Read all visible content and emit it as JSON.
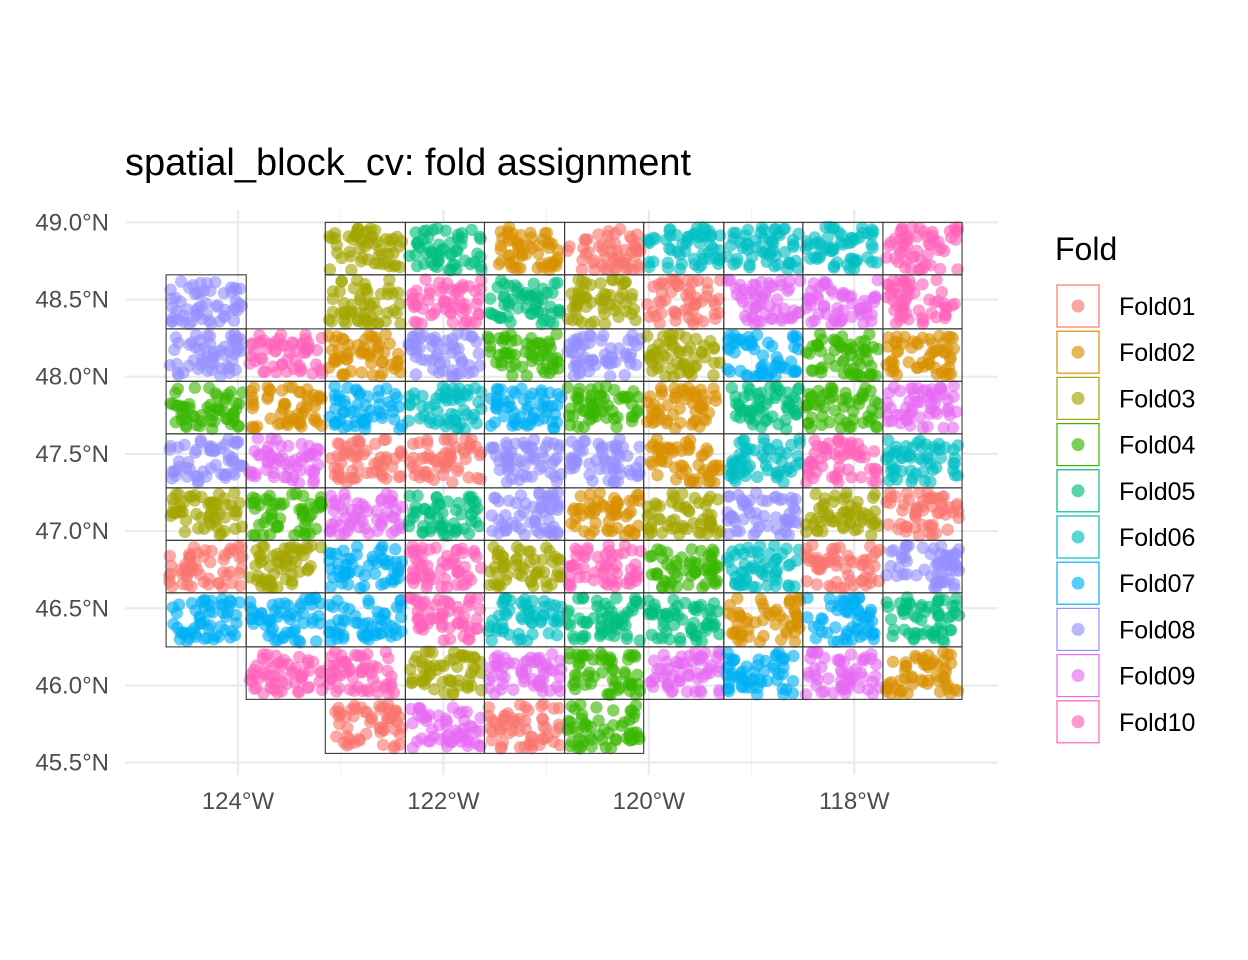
{
  "chart_data": {
    "type": "scatter",
    "title": "spatial_block_cv: fold assignment",
    "xlabel": "",
    "ylabel": "",
    "grid": true,
    "legend_position": "right",
    "x_axis": {
      "ticks": [
        -124,
        -122,
        -120,
        -118
      ],
      "tick_labels": [
        "124°W",
        "122°W",
        "120°W",
        "118°W"
      ],
      "range": [
        -125.1,
        -116.6
      ]
    },
    "y_axis": {
      "ticks": [
        45.5,
        46.0,
        46.5,
        47.0,
        47.5,
        48.0,
        48.5,
        49.0
      ],
      "tick_labels": [
        "45.5°N",
        "46.0°N",
        "46.5°N",
        "47.0°N",
        "47.5°N",
        "48.0°N",
        "48.5°N",
        "49.0°N"
      ],
      "range": [
        45.42,
        49.08
      ]
    },
    "legend": {
      "title": "Fold",
      "entries": [
        {
          "label": "Fold01",
          "color": "#F8766D"
        },
        {
          "label": "Fold02",
          "color": "#D89000"
        },
        {
          "label": "Fold03",
          "color": "#A3A500"
        },
        {
          "label": "Fold04",
          "color": "#39B600"
        },
        {
          "label": "Fold05",
          "color": "#00BF7D"
        },
        {
          "label": "Fold06",
          "color": "#00BFC4"
        },
        {
          "label": "Fold07",
          "color": "#00B0F6"
        },
        {
          "label": "Fold08",
          "color": "#9590FF"
        },
        {
          "label": "Fold09",
          "color": "#E76BF3"
        },
        {
          "label": "Fold10",
          "color": "#FF62BC"
        }
      ]
    },
    "block_grid": {
      "x_breaks": [
        -124.7,
        -123.92,
        -123.15,
        -122.37,
        -121.6,
        -120.82,
        -120.05,
        -119.27,
        -118.5,
        -117.72,
        -116.95
      ],
      "y_breaks": [
        45.56,
        45.91,
        46.25,
        46.6,
        46.94,
        47.28,
        47.63,
        47.97,
        48.31,
        48.66,
        49.0
      ],
      "folds_by_row_top_to_bottom": [
        [
          null,
          null,
          3,
          5,
          2,
          1,
          6,
          6,
          6,
          10
        ],
        [
          8,
          null,
          3,
          10,
          5,
          3,
          1,
          9,
          9,
          10
        ],
        [
          8,
          10,
          2,
          8,
          4,
          8,
          3,
          7,
          4,
          2
        ],
        [
          4,
          2,
          7,
          6,
          7,
          4,
          2,
          5,
          4,
          9
        ],
        [
          8,
          9,
          1,
          1,
          8,
          8,
          2,
          6,
          10,
          6
        ],
        [
          3,
          4,
          9,
          5,
          8,
          2,
          3,
          8,
          3,
          1
        ],
        [
          1,
          3,
          7,
          10,
          3,
          10,
          4,
          6,
          1,
          8
        ],
        [
          7,
          7,
          7,
          10,
          6,
          5,
          5,
          2,
          7,
          5
        ],
        [
          null,
          10,
          10,
          3,
          9,
          4,
          9,
          7,
          9,
          2
        ],
        [
          null,
          null,
          1,
          9,
          1,
          4,
          null,
          null,
          null,
          null
        ]
      ]
    }
  }
}
